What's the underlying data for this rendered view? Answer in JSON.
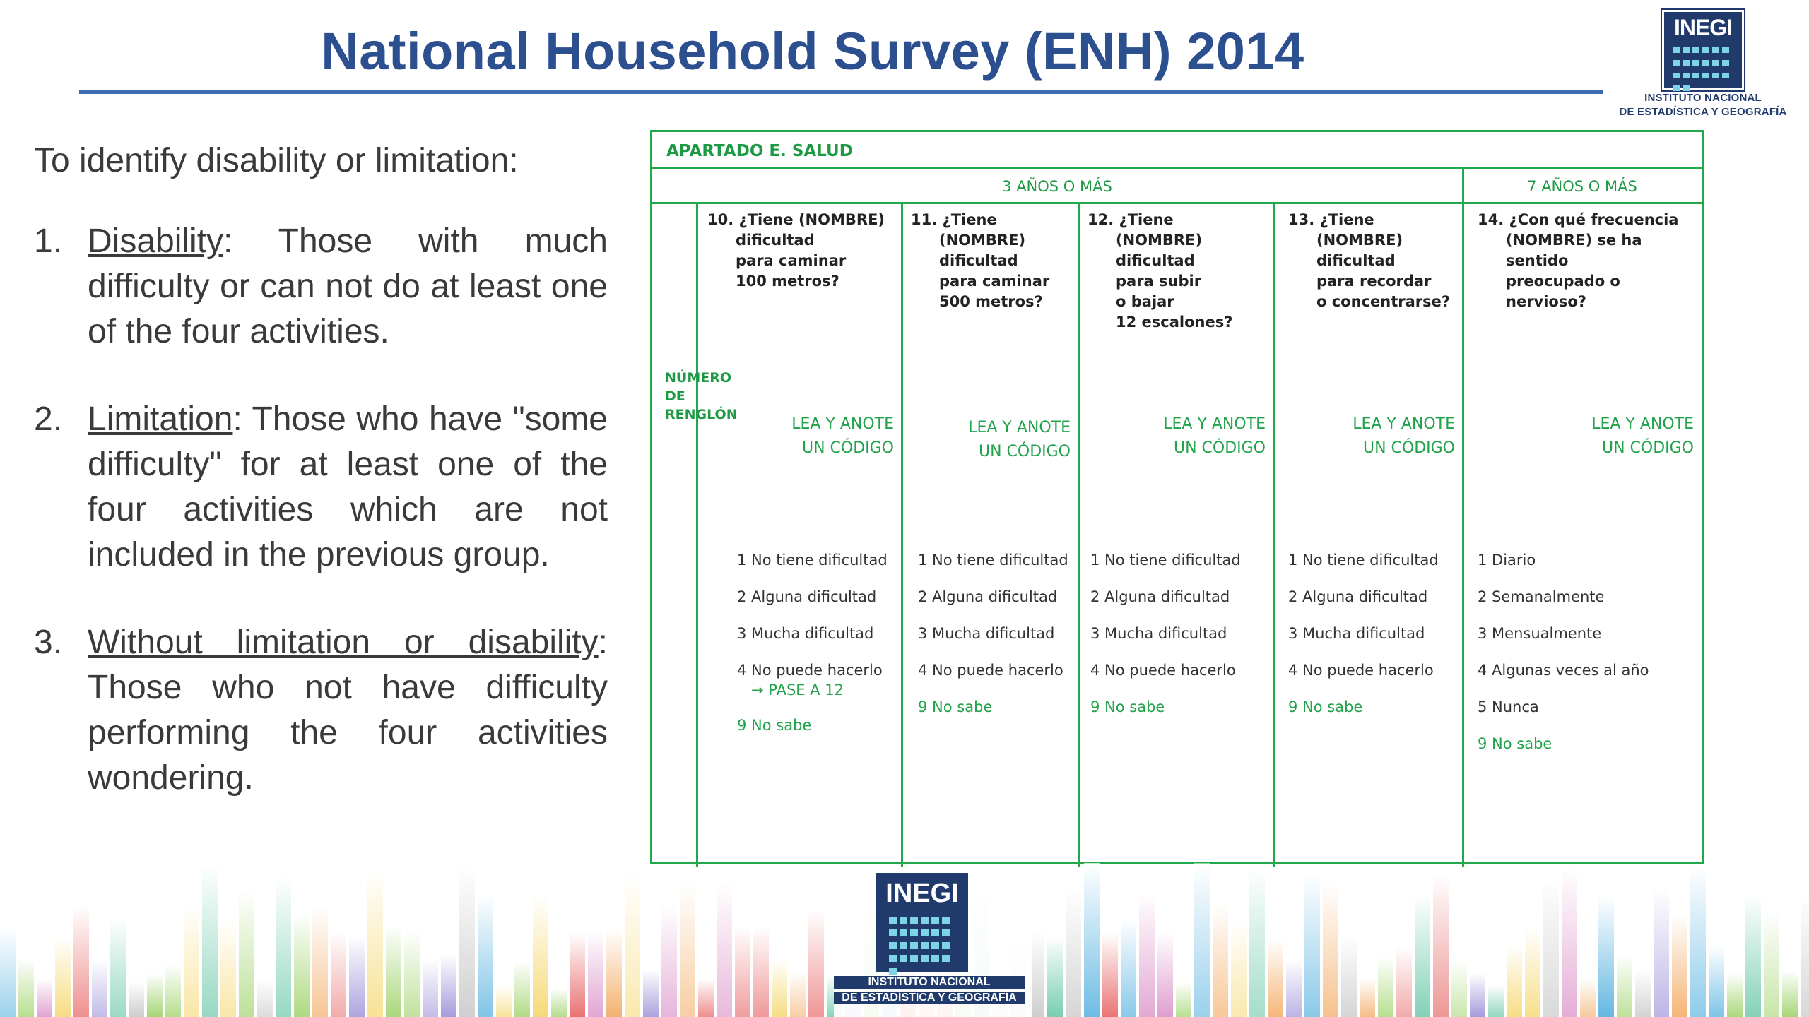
{
  "header": {
    "title": "National Household Survey (ENH) 2014",
    "logo": {
      "word": "INEGI",
      "line1": "INSTITUTO NACIONAL",
      "line2": "DE ESTADÍSTICA Y GEOGRAFÍA"
    }
  },
  "left": {
    "intro": "To identify disability or limitation:",
    "items": [
      {
        "num": "1.",
        "term": "Disability",
        "rest": ":  Those  with  much difficulty or can not do at least one of the four activities."
      },
      {
        "num": "2.",
        "term": "Limitation",
        "rest": ":  Those  who  have \"some difficulty\" for at least one of the four activities which are not included in the previous group."
      },
      {
        "num": "3.",
        "term": "Without limitation or disability",
        "rest": ": Those who not have difficulty performing the four activities wondering."
      }
    ]
  },
  "form": {
    "section": "APARTADO E. SALUD",
    "age_a": "3 AÑOS O MÁS",
    "age_b": "7 AÑOS O MÁS",
    "renglon": "NÚMERO DE RENGLÓN",
    "columns": [
      {
        "q_num": "10. ¿Tiene (NOMBRE)",
        "q_rest": [
          "dificultad",
          "para caminar",
          "100 metros?"
        ],
        "lea1": "LEA Y ANOTE",
        "lea2": "UN CÓDIGO",
        "opts": [
          "1 No tiene dificultad",
          "2 Alguna dificultad",
          "3 Mucha dificultad",
          "4 No puede hacerlo"
        ],
        "pase": "→ PASE A 12",
        "nosabe": "9 No sabe"
      },
      {
        "q_num": "11. ¿Tiene",
        "q_rest": [
          "(NOMBRE)",
          "dificultad",
          "para caminar",
          "500 metros?"
        ],
        "lea1": "LEA Y ANOTE",
        "lea2": "UN CÓDIGO",
        "opts": [
          "1 No tiene dificultad",
          "2 Alguna dificultad",
          "3 Mucha dificultad",
          "4 No puede hacerlo"
        ],
        "nosabe": "9 No sabe"
      },
      {
        "q_num": "12. ¿Tiene",
        "q_rest": [
          "(NOMBRE)",
          "dificultad",
          "para subir",
          "o bajar",
          "12 escalones?"
        ],
        "lea1": "LEA Y ANOTE",
        "lea2": "UN CÓDIGO",
        "opts": [
          "1 No tiene dificultad",
          "2 Alguna dificultad",
          "3 Mucha dificultad",
          "4 No puede hacerlo"
        ],
        "nosabe": "9 No sabe"
      },
      {
        "q_num": "13. ¿Tiene",
        "q_rest": [
          "(NOMBRE)",
          "dificultad",
          "para recordar",
          "o concentrarse?"
        ],
        "lea1": "LEA Y ANOTE",
        "lea2": "UN CÓDIGO",
        "opts": [
          "1 No tiene dificultad",
          "2 Alguna dificultad",
          "3 Mucha dificultad",
          "4 No puede hacerlo"
        ],
        "nosabe": "9 No sabe"
      },
      {
        "q_num": "14. ¿Con qué frecuencia",
        "q_rest": [
          "(NOMBRE) se ha sentido",
          "preocupado o nervioso?"
        ],
        "lea1": "LEA Y ANOTE",
        "lea2": "UN CÓDIGO",
        "opts": [
          "1 Diario",
          "2 Semanalmente",
          "3 Mensualmente",
          "4 Algunas veces al año",
          "5 Nunca"
        ],
        "nosabe": "9 No sabe"
      }
    ]
  },
  "footer": {
    "logo": {
      "word": "INEGI",
      "line1": "INSTITUTO NACIONAL",
      "line2": "DE ESTADÍSTICA Y GEOGRAFÍA"
    },
    "palette": [
      "#e86b6b",
      "#f2a65a",
      "#f5d76e",
      "#9fd36b",
      "#5cc3a0",
      "#5ab3e0",
      "#9b8fd8",
      "#d98cc5",
      "#c9c9c9"
    ]
  }
}
